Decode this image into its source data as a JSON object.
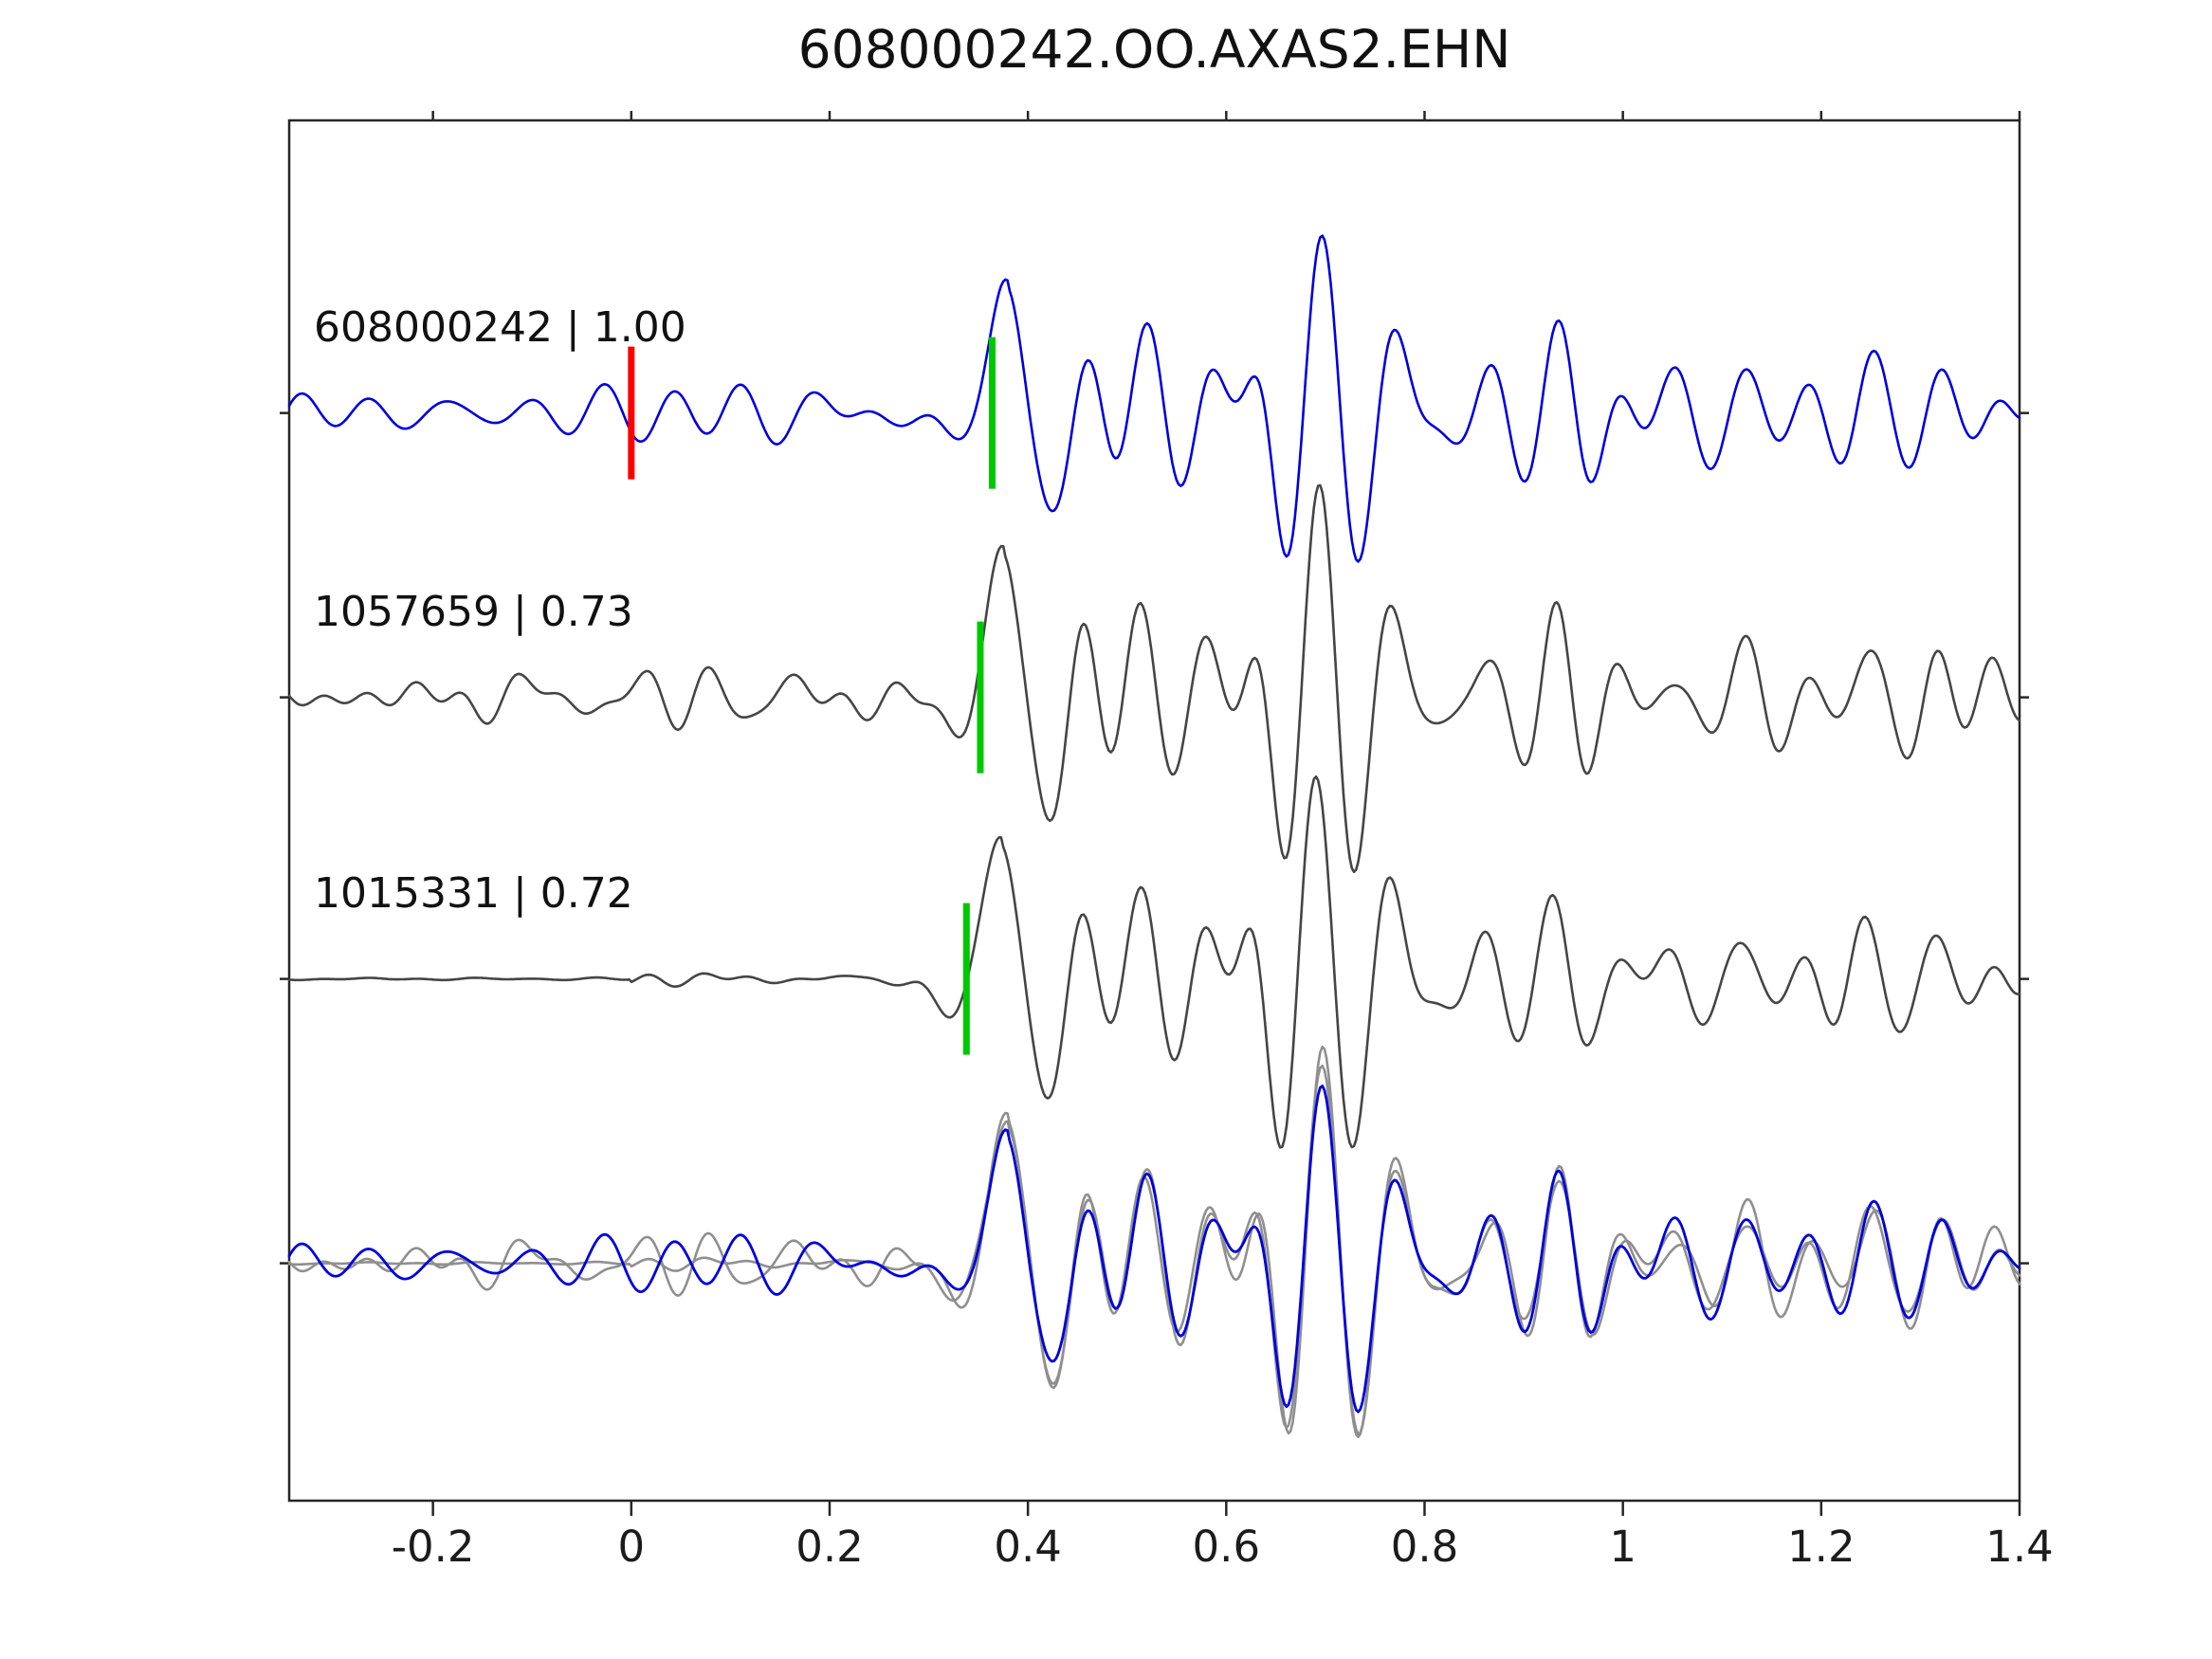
{
  "chart_data": {
    "type": "line",
    "title": "608000242.OO.AXAS2.EHN",
    "xlim": [
      -0.345,
      1.4
    ],
    "x_ticks": [
      -0.2,
      0,
      0.2,
      0.4,
      0.6,
      0.8,
      1,
      1.2,
      1.4
    ],
    "x_tick_labels": [
      "-0.2",
      "0",
      "0.2",
      "0.4",
      "0.6",
      "0.8",
      "1",
      "1.2",
      "1.4"
    ],
    "grid": false,
    "legend": null,
    "colors": {
      "background": "#ffffff",
      "axis": "#262626",
      "template_trace": "#0000dd",
      "detection_trace": "#454545",
      "overlay_gray": "#8f8f8f",
      "reference_pick": "#ff0000",
      "correlation_pick": "#00c800"
    },
    "rows": [
      {
        "kind": "template",
        "trace": "608000242"
      },
      {
        "kind": "detection",
        "trace": "1057659"
      },
      {
        "kind": "detection",
        "trace": "1015331"
      },
      {
        "kind": "overlay",
        "members": [
          "1057659",
          "1015331",
          "608000242"
        ]
      }
    ],
    "traces": [
      {
        "id": "608000242",
        "label": "608000242 | 1.00",
        "correlation": 1.0,
        "color": "#0000dd",
        "picks": [
          {
            "time": 0.0,
            "color": "#ff0000",
            "name": "reference-pick"
          },
          {
            "time": 0.364,
            "color": "#00c800",
            "name": "cross-correlation-pick"
          }
        ],
        "render": {
          "seed": 11,
          "noise_amp": 0.16,
          "arrival": 0.38,
          "peak": 1.0,
          "coda": 0.8
        }
      },
      {
        "id": "1057659",
        "label": "1057659 | 0.73",
        "correlation": 0.73,
        "color": "#454545",
        "picks": [
          {
            "time": 0.352,
            "color": "#00c800",
            "name": "cross-correlation-pick"
          }
        ],
        "render": {
          "seed": 29,
          "noise_amp": 0.17,
          "arrival": 0.376,
          "peak": 1.05,
          "coda": 0.85
        }
      },
      {
        "id": "1015331",
        "label": "1015331 | 0.72",
        "correlation": 0.72,
        "color": "#454545",
        "picks": [
          {
            "time": 0.338,
            "color": "#00c800",
            "name": "cross-correlation-pick"
          }
        ],
        "render": {
          "seed": 53,
          "noise_amp": 0.07,
          "arrival": 0.374,
          "peak": 1.05,
          "coda": 0.85,
          "noise_profile": [
            [
              0.0,
              0.012
            ],
            [
              0.33,
              0.07
            ]
          ]
        }
      }
    ],
    "signal": {
      "bursts_offsets": [
        0.08,
        0.14,
        0.2,
        0.27,
        0.34,
        0.41,
        0.49,
        0.57,
        0.64,
        0.71,
        0.78,
        0.85,
        0.93,
        1.0
      ],
      "bursts_amps": [
        0.5,
        0.42,
        0.48,
        0.8,
        0.55,
        0.62,
        0.5,
        0.85,
        0.5,
        0.45,
        0.5,
        0.55,
        0.4,
        0.38
      ]
    }
  }
}
